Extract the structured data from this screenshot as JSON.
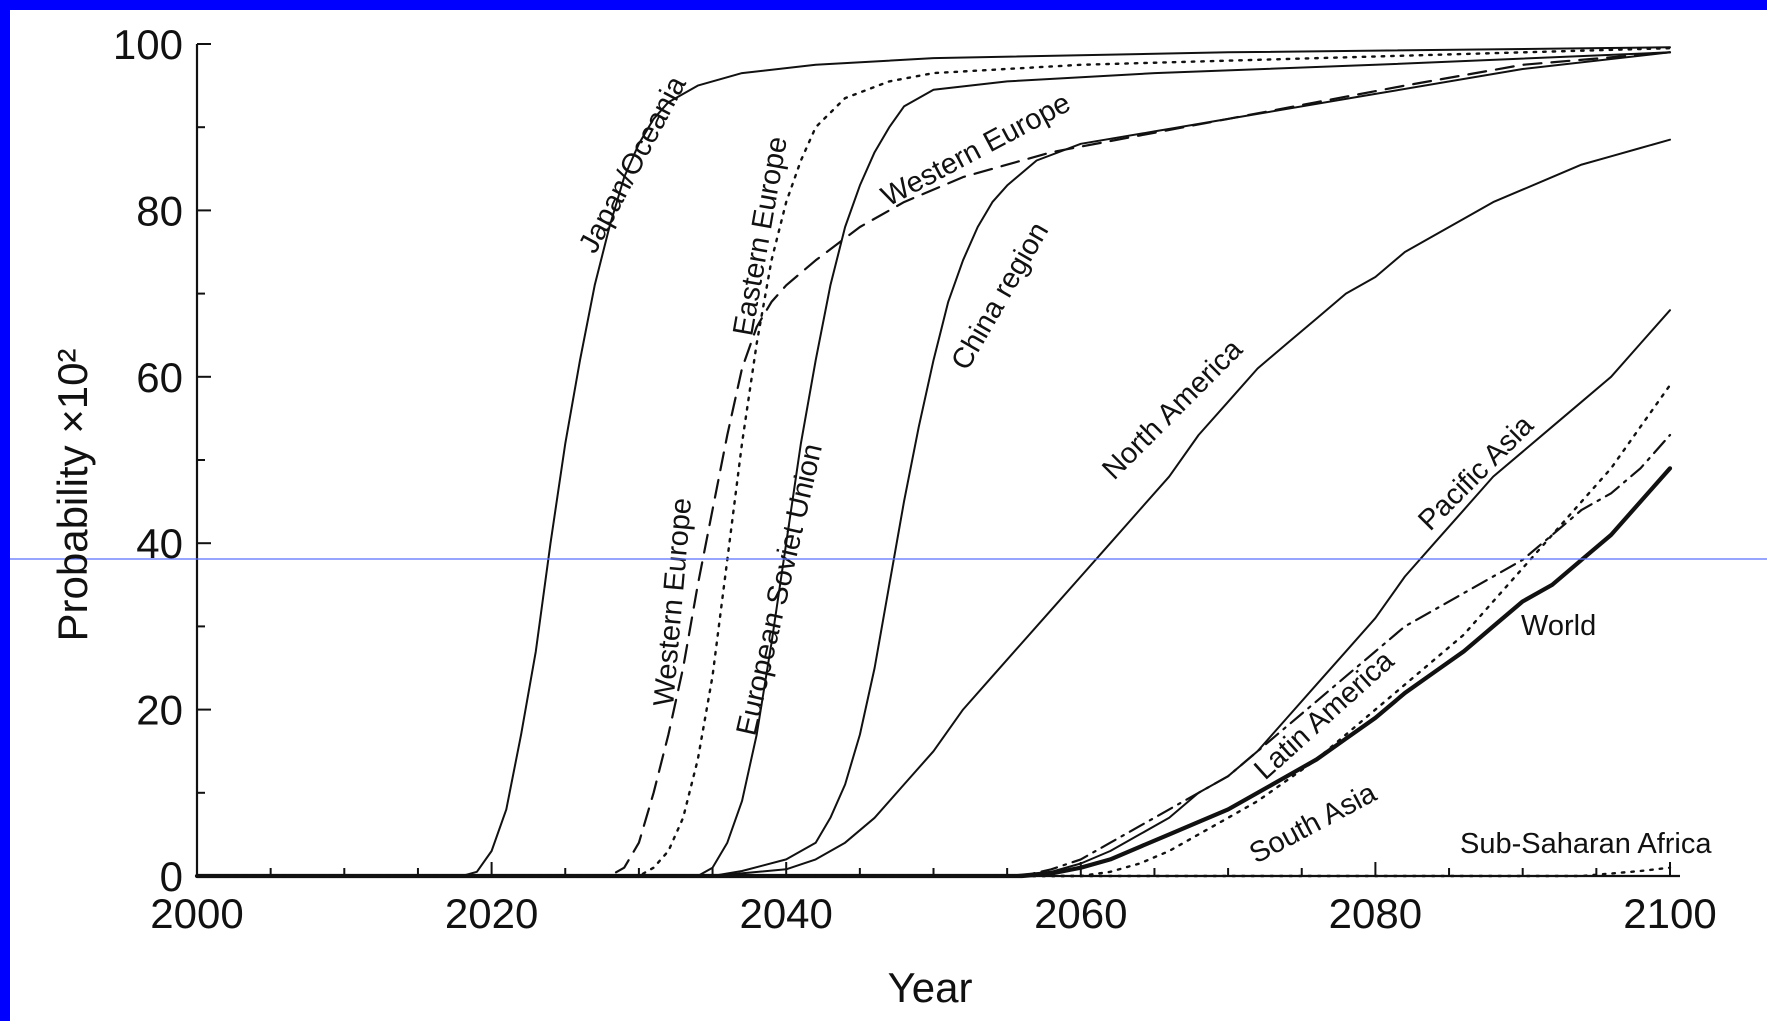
{
  "chart_data": {
    "type": "line",
    "xlabel": "Year",
    "ylabel": "Probability ×10²",
    "xlim": [
      2000,
      2100
    ],
    "ylim": [
      0,
      100
    ],
    "x_ticks": [
      "2000",
      "2020",
      "2040",
      "2060",
      "2080",
      "2100"
    ],
    "y_ticks": [
      "0",
      "20",
      "40",
      "60",
      "80",
      "100"
    ],
    "grid": false,
    "highlight_line_color": "#5a6fff",
    "series": [
      {
        "name": "Japan/Oceania",
        "style": "solid",
        "points": [
          [
            2000,
            0
          ],
          [
            2018,
            0
          ],
          [
            2019,
            0.5
          ],
          [
            2020,
            3
          ],
          [
            2021,
            8
          ],
          [
            2022,
            17
          ],
          [
            2023,
            27
          ],
          [
            2024,
            40
          ],
          [
            2025,
            52
          ],
          [
            2026,
            62
          ],
          [
            2027,
            71
          ],
          [
            2028,
            78
          ],
          [
            2029,
            84
          ],
          [
            2030,
            88
          ],
          [
            2031,
            91
          ],
          [
            2032,
            93
          ],
          [
            2034,
            95
          ],
          [
            2037,
            96.5
          ],
          [
            2042,
            97.5
          ],
          [
            2050,
            98.3
          ],
          [
            2070,
            99
          ],
          [
            2100,
            99.6
          ]
        ]
      },
      {
        "name": "Eastern Europe",
        "style": "dotted",
        "points": [
          [
            2000,
            0
          ],
          [
            2030,
            0
          ],
          [
            2031,
            1
          ],
          [
            2032,
            3
          ],
          [
            2033,
            7
          ],
          [
            2034,
            14
          ],
          [
            2035,
            24
          ],
          [
            2036,
            38
          ],
          [
            2037,
            52
          ],
          [
            2038,
            64
          ],
          [
            2039,
            74
          ],
          [
            2040,
            81
          ],
          [
            2041,
            86
          ],
          [
            2042,
            90
          ],
          [
            2044,
            93.5
          ],
          [
            2047,
            95.5
          ],
          [
            2050,
            96.5
          ],
          [
            2060,
            97.5
          ],
          [
            2080,
            98.5
          ],
          [
            2100,
            99.5
          ]
        ]
      },
      {
        "name": "Western Europe",
        "style": "dashed",
        "points": [
          [
            2000,
            0
          ],
          [
            2028,
            0
          ],
          [
            2029,
            1
          ],
          [
            2030,
            4
          ],
          [
            2031,
            10
          ],
          [
            2032,
            17
          ],
          [
            2033,
            25
          ],
          [
            2034,
            35
          ],
          [
            2035,
            44
          ],
          [
            2036,
            53
          ],
          [
            2037,
            61
          ],
          [
            2038,
            66
          ],
          [
            2039,
            69
          ],
          [
            2040,
            71
          ],
          [
            2042,
            74
          ],
          [
            2045,
            78
          ],
          [
            2048,
            81
          ],
          [
            2052,
            84
          ],
          [
            2058,
            87
          ],
          [
            2064,
            89
          ],
          [
            2070,
            91
          ],
          [
            2076,
            93
          ],
          [
            2082,
            95
          ],
          [
            2090,
            97.5
          ],
          [
            2100,
            99
          ]
        ]
      },
      {
        "name": "European Soviet Union",
        "style": "solid",
        "points": [
          [
            2000,
            0
          ],
          [
            2034,
            0
          ],
          [
            2035,
            1
          ],
          [
            2036,
            4
          ],
          [
            2037,
            9
          ],
          [
            2038,
            17
          ],
          [
            2039,
            28
          ],
          [
            2040,
            40
          ],
          [
            2041,
            52
          ],
          [
            2042,
            62
          ],
          [
            2043,
            71
          ],
          [
            2044,
            78
          ],
          [
            2045,
            83
          ],
          [
            2046,
            87
          ],
          [
            2047,
            90
          ],
          [
            2048,
            92.5
          ],
          [
            2050,
            94.5
          ],
          [
            2055,
            95.5
          ],
          [
            2065,
            96.5
          ],
          [
            2080,
            97.5
          ],
          [
            2100,
            99
          ]
        ]
      },
      {
        "name": "China region",
        "style": "solid",
        "points": [
          [
            2000,
            0
          ],
          [
            2035,
            0
          ],
          [
            2037,
            0.6
          ],
          [
            2040,
            2
          ],
          [
            2042,
            4
          ],
          [
            2043,
            7
          ],
          [
            2044,
            11
          ],
          [
            2045,
            17
          ],
          [
            2046,
            25
          ],
          [
            2047,
            35
          ],
          [
            2048,
            45
          ],
          [
            2049,
            54
          ],
          [
            2050,
            62
          ],
          [
            2051,
            69
          ],
          [
            2052,
            74
          ],
          [
            2053,
            78
          ],
          [
            2054,
            81
          ],
          [
            2055,
            83
          ],
          [
            2057,
            86
          ],
          [
            2060,
            88
          ],
          [
            2065,
            89.5
          ],
          [
            2070,
            91
          ],
          [
            2080,
            94
          ],
          [
            2090,
            97
          ],
          [
            2100,
            99
          ]
        ]
      },
      {
        "name": "North America",
        "style": "solid",
        "points": [
          [
            2000,
            0
          ],
          [
            2035,
            0
          ],
          [
            2040,
            0.8
          ],
          [
            2042,
            2
          ],
          [
            2044,
            4
          ],
          [
            2046,
            7
          ],
          [
            2048,
            11
          ],
          [
            2050,
            15
          ],
          [
            2052,
            20
          ],
          [
            2054,
            24
          ],
          [
            2056,
            28
          ],
          [
            2058,
            32
          ],
          [
            2060,
            36
          ],
          [
            2062,
            40
          ],
          [
            2064,
            44
          ],
          [
            2066,
            48
          ],
          [
            2068,
            53
          ],
          [
            2070,
            57
          ],
          [
            2072,
            61
          ],
          [
            2074,
            64
          ],
          [
            2076,
            67
          ],
          [
            2078,
            70
          ],
          [
            2080,
            72
          ],
          [
            2082,
            75
          ],
          [
            2084,
            77
          ],
          [
            2086,
            79
          ],
          [
            2088,
            81
          ],
          [
            2090,
            82.5
          ],
          [
            2092,
            84
          ],
          [
            2094,
            85.5
          ],
          [
            2096,
            86.5
          ],
          [
            2098,
            87.5
          ],
          [
            2100,
            88.5
          ]
        ]
      },
      {
        "name": "Pacific Asia",
        "style": "solid",
        "points": [
          [
            2000,
            0
          ],
          [
            2055,
            0
          ],
          [
            2058,
            0.5
          ],
          [
            2060,
            1.5
          ],
          [
            2062,
            3
          ],
          [
            2064,
            5
          ],
          [
            2066,
            7
          ],
          [
            2068,
            10
          ],
          [
            2070,
            12
          ],
          [
            2072,
            15
          ],
          [
            2074,
            19
          ],
          [
            2076,
            23
          ],
          [
            2078,
            27
          ],
          [
            2080,
            31
          ],
          [
            2082,
            36
          ],
          [
            2084,
            40
          ],
          [
            2086,
            44
          ],
          [
            2088,
            48
          ],
          [
            2090,
            51
          ],
          [
            2092,
            54
          ],
          [
            2094,
            57
          ],
          [
            2096,
            60
          ],
          [
            2098,
            64
          ],
          [
            2100,
            68
          ]
        ]
      },
      {
        "name": "Latin America",
        "style": "dashdot",
        "points": [
          [
            2000,
            0
          ],
          [
            2056,
            0
          ],
          [
            2058,
            0.8
          ],
          [
            2060,
            2
          ],
          [
            2062,
            4
          ],
          [
            2064,
            6
          ],
          [
            2066,
            8
          ],
          [
            2068,
            10
          ],
          [
            2070,
            12
          ],
          [
            2072,
            15
          ],
          [
            2074,
            18
          ],
          [
            2076,
            21
          ],
          [
            2078,
            24
          ],
          [
            2080,
            27
          ],
          [
            2082,
            30
          ],
          [
            2084,
            32
          ],
          [
            2086,
            34
          ],
          [
            2088,
            36
          ],
          [
            2090,
            38
          ],
          [
            2092,
            41
          ],
          [
            2094,
            44
          ],
          [
            2096,
            46
          ],
          [
            2098,
            49
          ],
          [
            2100,
            53
          ]
        ]
      },
      {
        "name": "South Asia",
        "style": "dotted",
        "points": [
          [
            2000,
            0
          ],
          [
            2060,
            0
          ],
          [
            2062,
            0.5
          ],
          [
            2064,
            1.5
          ],
          [
            2066,
            3
          ],
          [
            2068,
            5
          ],
          [
            2070,
            7
          ],
          [
            2072,
            9
          ],
          [
            2074,
            11.5
          ],
          [
            2076,
            14
          ],
          [
            2078,
            17
          ],
          [
            2080,
            20
          ],
          [
            2082,
            23
          ],
          [
            2084,
            26
          ],
          [
            2086,
            29
          ],
          [
            2088,
            33
          ],
          [
            2090,
            37
          ],
          [
            2092,
            41
          ],
          [
            2094,
            45
          ],
          [
            2096,
            49
          ],
          [
            2098,
            54
          ],
          [
            2100,
            59
          ]
        ]
      },
      {
        "name": "World",
        "style": "thick",
        "points": [
          [
            2000,
            0
          ],
          [
            2056,
            0
          ],
          [
            2058,
            0.3
          ],
          [
            2060,
            1
          ],
          [
            2062,
            2
          ],
          [
            2064,
            3.5
          ],
          [
            2066,
            5
          ],
          [
            2068,
            6.5
          ],
          [
            2070,
            8
          ],
          [
            2072,
            10
          ],
          [
            2074,
            12
          ],
          [
            2076,
            14
          ],
          [
            2078,
            16.5
          ],
          [
            2080,
            19
          ],
          [
            2082,
            22
          ],
          [
            2084,
            24.5
          ],
          [
            2086,
            27
          ],
          [
            2088,
            30
          ],
          [
            2090,
            33
          ],
          [
            2092,
            35
          ],
          [
            2094,
            38
          ],
          [
            2096,
            41
          ],
          [
            2098,
            45
          ],
          [
            2100,
            49
          ]
        ]
      },
      {
        "name": "Sub-Saharan Africa",
        "style": "dotted",
        "points": [
          [
            2000,
            0
          ],
          [
            2094,
            0
          ],
          [
            2096,
            0.3
          ],
          [
            2098,
            0.6
          ],
          [
            2100,
            1
          ]
        ]
      }
    ]
  }
}
